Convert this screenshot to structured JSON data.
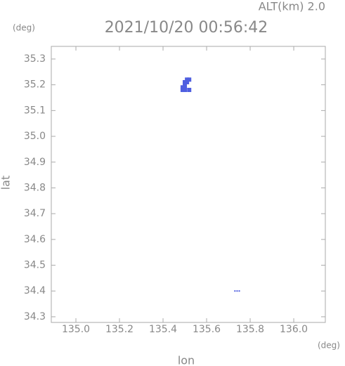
{
  "chart_data": {
    "type": "scatter",
    "title": "2021/10/20 00:56:42",
    "annotation": "ALT(km) 2.0",
    "x_unit": "(deg)",
    "y_unit": "(deg)",
    "x_label": "lon",
    "y_label": "lat",
    "color": "#4f5fe0",
    "x": [
      135.51,
      135.52,
      135.5,
      135.51,
      135.5,
      135.49,
      135.5,
      135.49,
      135.5,
      135.52,
      135.73,
      135.74,
      135.75
    ],
    "y": [
      35.22,
      35.22,
      35.21,
      35.21,
      35.2,
      35.19,
      35.19,
      35.18,
      35.18,
      35.18,
      34.4,
      34.4,
      34.4
    ],
    "xlim": [
      134.887,
      136.145
    ],
    "ylim": [
      34.278,
      35.349
    ],
    "xticks": [
      {
        "value": 135.0,
        "label": "135.0"
      },
      135.2,
      135.4,
      135.6,
      135.8,
      {
        "value": 136.0,
        "label": "136.0"
      }
    ],
    "yticks": [
      34.3,
      34.4,
      34.5,
      34.6,
      34.7,
      34.8,
      34.9,
      {
        "value": 35.0,
        "label": "35.0"
      },
      35.1,
      35.2,
      35.3
    ]
  }
}
